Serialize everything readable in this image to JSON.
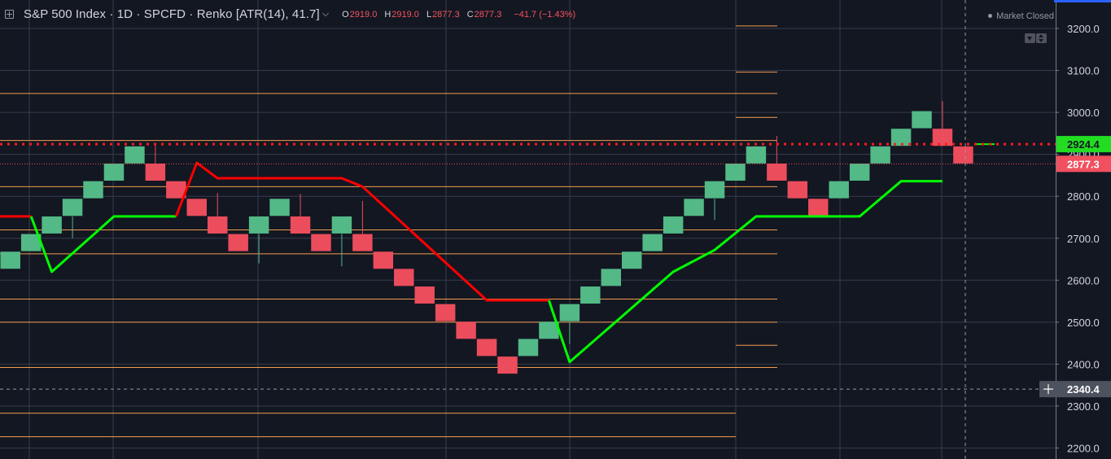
{
  "legend": {
    "title": "S&P 500 Index · 1D · SPCFD · Renko [ATR(14), 41.7]",
    "open_label": "O",
    "open": "2919.0",
    "high_label": "H",
    "high": "2919.0",
    "low_label": "L",
    "low": "2877.3",
    "close_label": "C",
    "close": "2877.3",
    "change": "−41.7 (−1.43%)"
  },
  "status": {
    "market": "Market Closed"
  },
  "price_labels": {
    "line": "2924.4",
    "last": "2877.3",
    "crosshair": "2340.4"
  },
  "colors": {
    "background": "#131722",
    "up_brick": "#53b987",
    "down_brick": "#eb4d5c",
    "supertrend_up": "#00ff00",
    "supertrend_down": "#ff0000",
    "level_lines": "#f49b4f",
    "last_price_label": "#f05060",
    "line_price_label": "#22dd22"
  },
  "chart_data": {
    "type": "renko",
    "symbol": "S&P 500 Index",
    "interval": "1D",
    "source": "SPCFD",
    "box_size": 41.7,
    "y_axis": {
      "ticks": [
        3200.0,
        3100.0,
        3000.0,
        2900.0,
        2800.0,
        2700.0,
        2600.0,
        2500.0,
        2400.0,
        2300.0,
        2200.0
      ],
      "ylim": [
        2181,
        3231
      ]
    },
    "bricks": [
      {
        "dir": "up",
        "low": 2627,
        "high": 2668
      },
      {
        "dir": "up",
        "low": 2668,
        "high": 2710
      },
      {
        "dir": "up",
        "low": 2710,
        "high": 2752
      },
      {
        "dir": "up",
        "low": 2752,
        "high": 2794,
        "wick_low": 2700
      },
      {
        "dir": "up",
        "low": 2794,
        "high": 2836
      },
      {
        "dir": "up",
        "low": 2836,
        "high": 2878
      },
      {
        "dir": "up",
        "low": 2878,
        "high": 2919
      },
      {
        "dir": "down",
        "low": 2836,
        "high": 2878,
        "wick_high": 2922
      },
      {
        "dir": "down",
        "low": 2794,
        "high": 2836
      },
      {
        "dir": "down",
        "low": 2752,
        "high": 2794
      },
      {
        "dir": "down",
        "low": 2710,
        "high": 2752,
        "wick_high": 2808
      },
      {
        "dir": "down",
        "low": 2668,
        "high": 2710
      },
      {
        "dir": "up",
        "low": 2710,
        "high": 2752,
        "wick_low": 2640
      },
      {
        "dir": "up",
        "low": 2752,
        "high": 2794
      },
      {
        "dir": "down",
        "low": 2710,
        "high": 2752,
        "wick_high": 2806
      },
      {
        "dir": "down",
        "low": 2668,
        "high": 2710
      },
      {
        "dir": "up",
        "low": 2710,
        "high": 2752,
        "wick_low": 2633
      },
      {
        "dir": "down",
        "low": 2668,
        "high": 2710,
        "wick_high": 2789
      },
      {
        "dir": "down",
        "low": 2627,
        "high": 2668
      },
      {
        "dir": "down",
        "low": 2585,
        "high": 2627
      },
      {
        "dir": "down",
        "low": 2543,
        "high": 2585
      },
      {
        "dir": "down",
        "low": 2501,
        "high": 2543
      },
      {
        "dir": "down",
        "low": 2460,
        "high": 2501
      },
      {
        "dir": "down",
        "low": 2418,
        "high": 2460
      },
      {
        "dir": "down",
        "low": 2376,
        "high": 2418
      },
      {
        "dir": "up",
        "low": 2418,
        "high": 2460
      },
      {
        "dir": "up",
        "low": 2460,
        "high": 2501
      },
      {
        "dir": "up",
        "low": 2501,
        "high": 2543,
        "wick_low": 2448
      },
      {
        "dir": "up",
        "low": 2543,
        "high": 2585
      },
      {
        "dir": "up",
        "low": 2585,
        "high": 2627
      },
      {
        "dir": "up",
        "low": 2627,
        "high": 2668
      },
      {
        "dir": "up",
        "low": 2668,
        "high": 2710
      },
      {
        "dir": "up",
        "low": 2710,
        "high": 2752
      },
      {
        "dir": "up",
        "low": 2752,
        "high": 2794
      },
      {
        "dir": "up",
        "low": 2794,
        "high": 2836,
        "wick_low": 2744
      },
      {
        "dir": "up",
        "low": 2836,
        "high": 2878
      },
      {
        "dir": "up",
        "low": 2878,
        "high": 2919
      },
      {
        "dir": "down",
        "low": 2836,
        "high": 2878,
        "wick_high": 2944
      },
      {
        "dir": "down",
        "low": 2794,
        "high": 2836
      },
      {
        "dir": "down",
        "low": 2752,
        "high": 2794
      },
      {
        "dir": "up",
        "low": 2794,
        "high": 2836
      },
      {
        "dir": "up",
        "low": 2836,
        "high": 2878
      },
      {
        "dir": "up",
        "low": 2878,
        "high": 2919
      },
      {
        "dir": "up",
        "low": 2919,
        "high": 2961
      },
      {
        "dir": "up",
        "low": 2961,
        "high": 3003
      },
      {
        "dir": "down",
        "low": 2919,
        "high": 2961,
        "wick_high": 3027
      },
      {
        "dir": "down",
        "low": 2877,
        "high": 2919
      }
    ],
    "supertrend": [
      {
        "dir": "down",
        "points": [
          [
            -0.3,
            2752
          ],
          [
            1.5,
            2752
          ]
        ]
      },
      {
        "dir": "up",
        "points": [
          [
            1.5,
            2752
          ],
          [
            2.5,
            2620
          ],
          [
            5.5,
            2752
          ],
          [
            8.5,
            2752
          ]
        ]
      },
      {
        "dir": "down",
        "points": [
          [
            8.5,
            2752
          ],
          [
            9.5,
            2880
          ],
          [
            10.5,
            2843
          ],
          [
            16.5,
            2843
          ],
          [
            17.5,
            2823
          ],
          [
            23.5,
            2552
          ],
          [
            26.5,
            2552
          ]
        ]
      },
      {
        "dir": "up",
        "points": [
          [
            26.5,
            2552
          ],
          [
            27.5,
            2405
          ],
          [
            32.5,
            2620
          ],
          [
            34.5,
            2672
          ],
          [
            36.5,
            2752
          ],
          [
            41.5,
            2752
          ],
          [
            43.5,
            2836
          ],
          [
            45.5,
            2836
          ]
        ]
      }
    ],
    "levels_full": [
      3045,
      2933,
      2823,
      2720,
      2663,
      2555,
      2500,
      2392
    ],
    "levels_left": [
      2283,
      2227
    ],
    "levels_right": [
      3206,
      3096,
      2988,
      2445
    ],
    "dotted_reference": 2924.4
  }
}
